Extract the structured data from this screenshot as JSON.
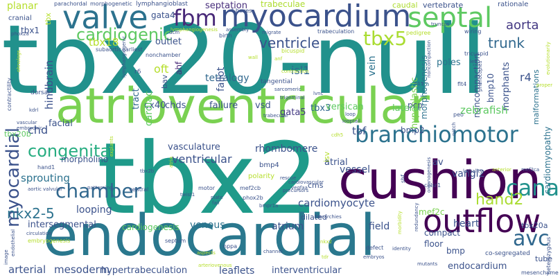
{
  "words": [
    {
      "text": "tbx20-null",
      "color": "#21918c"
    },
    {
      "text": "tbx2",
      "color": "#1f9a8a"
    },
    {
      "text": "atrioventricular",
      "color": "#7ad151"
    },
    {
      "text": "endocardial",
      "color": "#2a788e"
    },
    {
      "text": "cushion",
      "color": "#440154"
    },
    {
      "text": "valve",
      "color": "#2c728e"
    },
    {
      "text": "myocardium",
      "color": "#3b528b"
    },
    {
      "text": "fbm",
      "color": "#482878"
    },
    {
      "text": "septal",
      "color": "#5ec962"
    },
    {
      "text": "tbx5",
      "color": "#aadc32"
    },
    {
      "text": "cardiogenic",
      "color": "#5ec962"
    },
    {
      "text": "branchiomotor",
      "color": "#2c728e"
    },
    {
      "text": "outflow",
      "color": "#440154"
    },
    {
      "text": "canal",
      "color": "#21918c"
    },
    {
      "text": "avc",
      "color": "#31688e"
    },
    {
      "text": "chamber",
      "color": "#31688e"
    },
    {
      "text": "congenital",
      "color": "#27ad81"
    },
    {
      "text": "myocardial",
      "color": "#3b528b"
    },
    {
      "text": "hand2",
      "color": "#aadc32"
    },
    {
      "text": "nkx2-5",
      "color": "#2c728e"
    },
    {
      "text": "ventricle",
      "color": "#3b528b"
    },
    {
      "text": "trunk",
      "color": "#31688e"
    },
    {
      "text": "aorta",
      "color": "#443983"
    },
    {
      "text": "septation",
      "color": "#472d7b"
    },
    {
      "text": "trabeculae",
      "color": "#addc30"
    },
    {
      "text": "caudal",
      "color": "#addc30"
    },
    {
      "text": "vertebrate",
      "color": "#3b528b"
    },
    {
      "text": "rationale",
      "color": "#3b528b"
    },
    {
      "text": "gata4",
      "color": "#3b528b"
    },
    {
      "text": "tbx18",
      "color": "#b5de2b"
    },
    {
      "text": "outlet",
      "color": "#3b528b"
    },
    {
      "text": "tbx1",
      "color": "#3b528b"
    },
    {
      "text": "planar",
      "color": "#b5de2b"
    },
    {
      "text": "cranial",
      "color": "#3b528b"
    },
    {
      "text": "tbx",
      "color": "#b5de2b"
    },
    {
      "text": "isl1",
      "color": "#31688e"
    },
    {
      "text": "tetralogy",
      "color": "#31688e"
    },
    {
      "text": "poles",
      "color": "#2c728e"
    },
    {
      "text": "cardiomyopathy",
      "color": "#2c728e"
    },
    {
      "text": "malformations",
      "color": "#2c728e"
    },
    {
      "text": "morphants",
      "color": "#3b528b"
    },
    {
      "text": "r4",
      "color": "#3b528b"
    },
    {
      "text": "bmp10",
      "color": "#3b528b"
    },
    {
      "text": "hypoplastic",
      "color": "#7ad151"
    },
    {
      "text": "noncompaction",
      "color": "#3b528b"
    },
    {
      "text": "morphogenesis",
      "color": "#2c728e"
    },
    {
      "text": "hindbrain",
      "color": "#3b528b"
    },
    {
      "text": "oft",
      "color": "#b5de2b"
    },
    {
      "text": "ahf",
      "color": "#482878"
    },
    {
      "text": "bav",
      "color": "#3b528b"
    },
    {
      "text": "fallot",
      "color": "#3b528b"
    },
    {
      "text": "tbx3",
      "color": "#31688e"
    },
    {
      "text": "gata5",
      "color": "#443983"
    },
    {
      "text": "pcp",
      "color": "#3b528b"
    },
    {
      "text": "vein",
      "color": "#2c728e"
    },
    {
      "text": "cx40",
      "color": "#3b528b"
    },
    {
      "text": "chds",
      "color": "#3b528b"
    },
    {
      "text": "failure",
      "color": "#3b528b"
    },
    {
      "text": "vsd",
      "color": "#3b528b"
    },
    {
      "text": "versican",
      "color": "#5ec962"
    },
    {
      "text": "lateral",
      "color": "#5ec962"
    },
    {
      "text": "zebrafish",
      "color": "#5ec962"
    },
    {
      "text": "facial",
      "color": "#3b528b"
    },
    {
      "text": "chd",
      "color": "#3b528b"
    },
    {
      "text": "tract",
      "color": "#31688e"
    },
    {
      "text": "cardiac",
      "color": "#5ec962"
    },
    {
      "text": "tof",
      "color": "#3b528b"
    },
    {
      "text": "bmp2",
      "color": "#3b528b"
    },
    {
      "text": "vasculature",
      "color": "#3b528b"
    },
    {
      "text": "rhombomere",
      "color": "#3b528b"
    },
    {
      "text": "morpholino",
      "color": "#3b528b"
    },
    {
      "text": "sprouting",
      "color": "#2c728e"
    },
    {
      "text": "ventricular",
      "color": "#3b528b"
    },
    {
      "text": "atrial",
      "color": "#3b528b"
    },
    {
      "text": "vessel",
      "color": "#3b528b"
    },
    {
      "text": "av",
      "color": "#3b528b"
    },
    {
      "text": "vangl2",
      "color": "#3b528b"
    },
    {
      "text": "cardiomyocyte",
      "color": "#3b528b"
    },
    {
      "text": "looping",
      "color": "#3b528b"
    },
    {
      "text": "mef2c",
      "color": "#7ad151"
    },
    {
      "text": "intersegmental",
      "color": "#3b528b"
    },
    {
      "text": "venous",
      "color": "#2c728e"
    },
    {
      "text": "atrium",
      "color": "#3b528b"
    },
    {
      "text": "field",
      "color": "#3b528b"
    },
    {
      "text": "heart",
      "color": "#3b528b"
    },
    {
      "text": "tbx20a",
      "color": "#3b528b"
    },
    {
      "text": "cardiogenesis",
      "color": "#5ec962"
    },
    {
      "text": "compact",
      "color": "#3b528b"
    },
    {
      "text": "floor",
      "color": "#3b528b"
    },
    {
      "text": "bmp",
      "color": "#3b528b"
    },
    {
      "text": "arterial",
      "color": "#3b528b"
    },
    {
      "text": "mesoderm",
      "color": "#3b528b"
    },
    {
      "text": "hypertrabeculation",
      "color": "#3b528b"
    },
    {
      "text": "leaflets",
      "color": "#3b528b"
    },
    {
      "text": "interventricular",
      "color": "#3b528b"
    },
    {
      "text": "endocardium",
      "color": "#3b528b"
    },
    {
      "text": "co-segregated",
      "color": "#3b528b"
    },
    {
      "text": "tube",
      "color": "#3b528b"
    },
    {
      "text": "tbx20b",
      "color": "#5ec962"
    },
    {
      "text": "dilated",
      "color": "#3b528b"
    },
    {
      "text": "bmp4",
      "color": "#3b528b"
    },
    {
      "text": "polarity",
      "color": "#b5de2b"
    },
    {
      "text": "cms",
      "color": "#3b528b"
    },
    {
      "text": "lymphangioblast",
      "color": "#3b528b"
    },
    {
      "text": "morphogenetic",
      "color": "#3b528b"
    },
    {
      "text": "parachordal",
      "color": "#3b528b"
    },
    {
      "text": "lymphangiogenesis",
      "color": "#b5de2b"
    },
    {
      "text": "t-boxes",
      "color": "#3b528b"
    },
    {
      "text": "trabeculation",
      "color": "#3b528b"
    },
    {
      "text": "migrate",
      "color": "#3b528b"
    },
    {
      "text": "birth",
      "color": "#3b528b"
    },
    {
      "text": "pedigree",
      "color": "#b5de2b"
    },
    {
      "text": "wiring",
      "color": "#3b528b"
    },
    {
      "text": "truncus",
      "color": "#3b528b"
    },
    {
      "text": "tricuspid",
      "color": "#3b528b"
    },
    {
      "text": "bicuspid",
      "color": "#b5de2b"
    },
    {
      "text": "flt4",
      "color": "#3b528b"
    },
    {
      "text": "h15",
      "color": "#3b528b"
    },
    {
      "text": "tangential",
      "color": "#3b528b"
    },
    {
      "text": "sarcomeric",
      "color": "#3b528b"
    },
    {
      "text": "lvnc",
      "color": "#3b528b"
    },
    {
      "text": "peo",
      "color": "#3b528b"
    },
    {
      "text": "noncompaction",
      "color": "#3b528b"
    },
    {
      "text": "subaortic",
      "color": "#3b528b"
    },
    {
      "text": "earliest",
      "color": "#3b528b"
    },
    {
      "text": "nonchamber",
      "color": "#3b528b"
    },
    {
      "text": "r6",
      "color": "#3b528b"
    },
    {
      "text": "lymphangiogenic",
      "color": "#3b528b"
    },
    {
      "text": "dorsal",
      "color": "#3b528b"
    },
    {
      "text": "kdrl",
      "color": "#3b528b"
    },
    {
      "text": "contractility",
      "color": "#3b528b"
    },
    {
      "text": "vascular",
      "color": "#3b528b"
    },
    {
      "text": "embryonic",
      "color": "#3b528b"
    },
    {
      "text": "hand1",
      "color": "#3b528b"
    },
    {
      "text": "aortic",
      "color": "#3b528b"
    },
    {
      "text": "patterning",
      "color": "#3b528b"
    },
    {
      "text": "ventral",
      "color": "#3b528b"
    },
    {
      "text": "twist1",
      "color": "#3b528b"
    },
    {
      "text": "motor",
      "color": "#3b528b"
    },
    {
      "text": "mef2cb",
      "color": "#3b528b"
    },
    {
      "text": "phox2b",
      "color": "#3b528b"
    },
    {
      "text": "plate",
      "color": "#3b528b"
    },
    {
      "text": "bmpr1a",
      "color": "#3b528b"
    },
    {
      "text": "shf",
      "color": "#3b528b"
    },
    {
      "text": "celsr1",
      "color": "#3b528b"
    },
    {
      "text": "hierarchies",
      "color": "#3b528b"
    },
    {
      "text": "septum",
      "color": "#3b528b"
    },
    {
      "text": "nppa",
      "color": "#3b528b"
    },
    {
      "text": "channel",
      "color": "#3b528b"
    },
    {
      "text": "defect",
      "color": "#3b528b"
    },
    {
      "text": "embryos",
      "color": "#3b528b"
    },
    {
      "text": "identity",
      "color": "#3b528b"
    },
    {
      "text": "mutants",
      "color": "#3b528b"
    },
    {
      "text": "mesenchyme",
      "color": "#3b528b"
    },
    {
      "text": "heterozygous",
      "color": "#3b528b"
    },
    {
      "text": "endothelial",
      "color": "#3b528b"
    },
    {
      "text": "image",
      "color": "#3b528b"
    },
    {
      "text": "circulation",
      "color": "#3b528b"
    },
    {
      "text": "embryogenesis",
      "color": "#b5de2b"
    },
    {
      "text": "tbx2b",
      "color": "#3b528b"
    },
    {
      "text": "isv",
      "color": "#b5de2b"
    },
    {
      "text": "lethality",
      "color": "#3b528b"
    },
    {
      "text": "anterior",
      "color": "#b5de2b"
    },
    {
      "text": "mef2ca",
      "color": "#3b528b"
    },
    {
      "text": "notch",
      "color": "#3b528b"
    },
    {
      "text": "organogenesis",
      "color": "#3b528b"
    },
    {
      "text": "cardiovascular",
      "color": "#3b528b"
    },
    {
      "text": "rescue",
      "color": "#3b528b"
    },
    {
      "text": "vegfaa",
      "color": "#3b528b"
    },
    {
      "text": "dcm",
      "color": "#3b528b"
    },
    {
      "text": "assembly",
      "color": "#3b528b"
    },
    {
      "text": "phox2a",
      "color": "#3b528b"
    },
    {
      "text": "proper",
      "color": "#b5de2b"
    },
    {
      "text": "left",
      "color": "#3b528b"
    },
    {
      "text": "phenocopies",
      "color": "#3b528b"
    },
    {
      "text": "evolutionarily",
      "color": "#b5de2b"
    },
    {
      "text": "contraction",
      "color": "#b5de2b"
    },
    {
      "text": "wall",
      "color": "#b5de2b"
    },
    {
      "text": "loop",
      "color": "#3b528b"
    },
    {
      "text": "trabecular",
      "color": "#3b528b"
    },
    {
      "text": "trigeminal",
      "color": "#3b528b"
    },
    {
      "text": "looptail",
      "color": "#3b528b"
    },
    {
      "text": "ohnologs",
      "color": "#b5de2b"
    },
    {
      "text": "valvular",
      "color": "#3b528b"
    },
    {
      "text": "explants",
      "color": "#b5de2b"
    },
    {
      "text": "precursors",
      "color": "#3b528b"
    },
    {
      "text": "fail",
      "color": "#3b528b"
    },
    {
      "text": "arteriovenous",
      "color": "#b5de2b"
    },
    {
      "text": "redundancy",
      "color": "#3b528b"
    },
    {
      "text": "morbidity",
      "color": "#b5de2b"
    },
    {
      "text": "nkx2",
      "color": "#b5de2b"
    },
    {
      "text": "tdr",
      "color": "#b5de2b"
    },
    {
      "text": "aspects",
      "color": "#b5de2b"
    },
    {
      "text": "cdh5",
      "color": "#b5de2b"
    },
    {
      "text": "atria",
      "color": "#b5de2b"
    },
    {
      "text": "anf",
      "color": "#b5de2b"
    }
  ]
}
